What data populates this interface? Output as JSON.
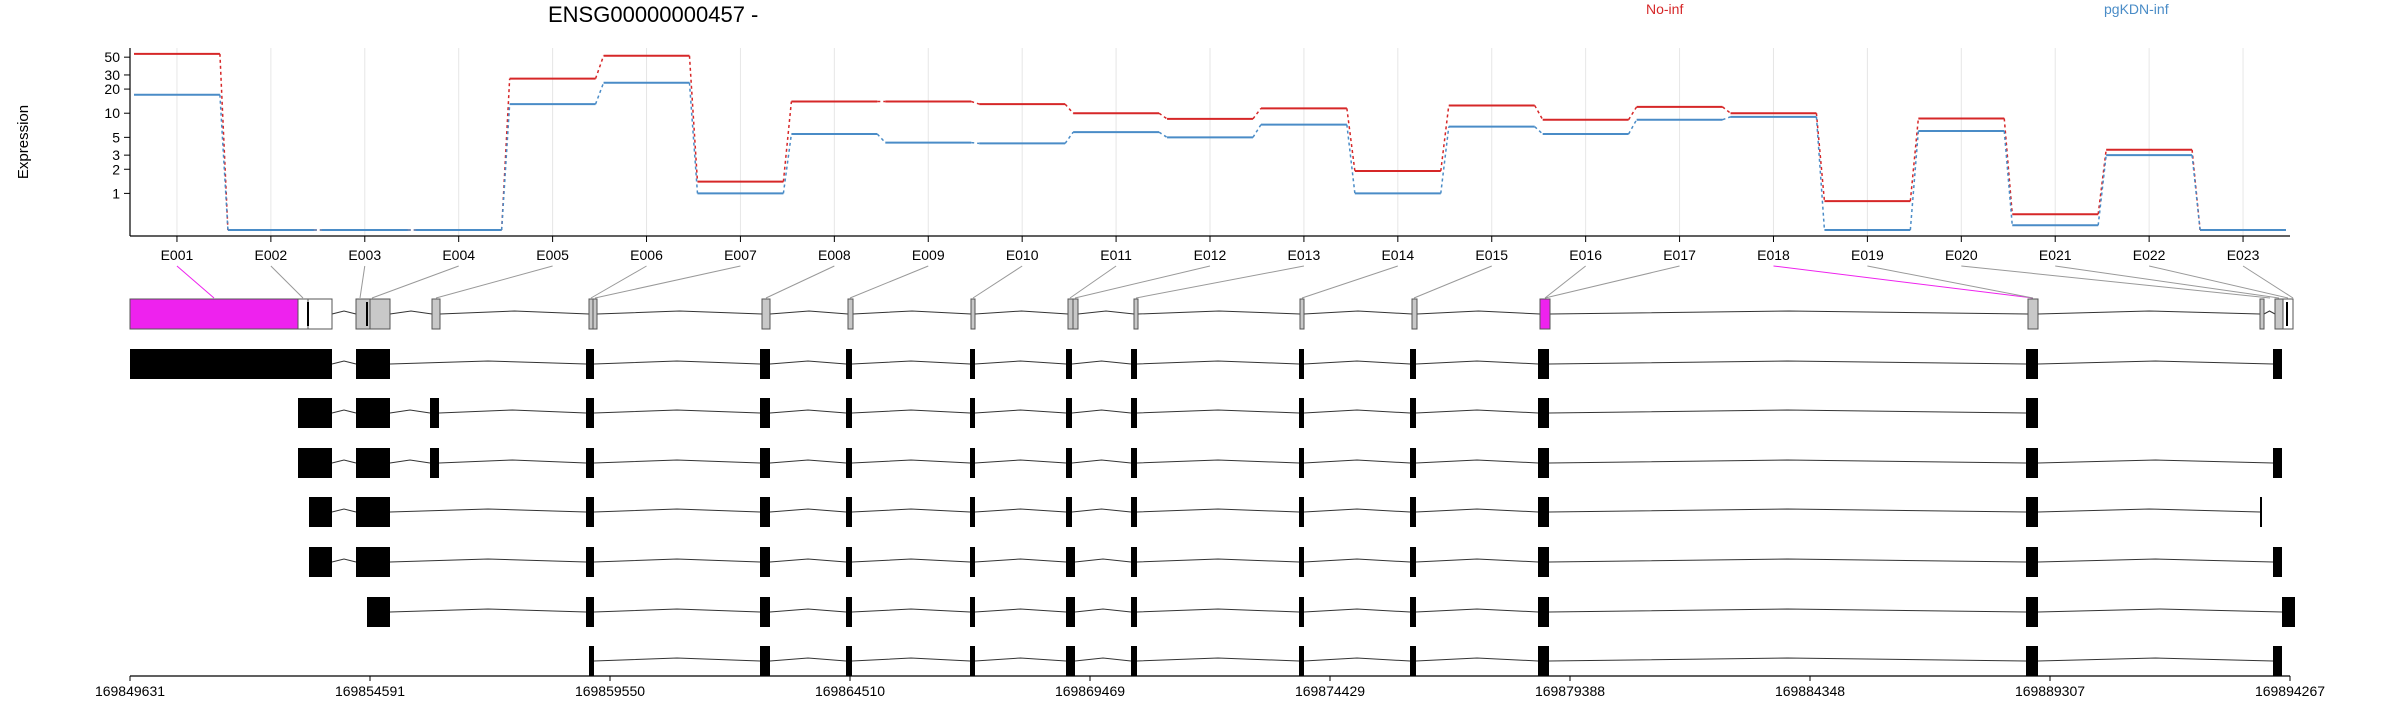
{
  "chart_data": {
    "type": "line",
    "title": "ENSG00000000457 -",
    "ylabel": "Expression",
    "y_scale": "log",
    "y_ticks": [
      "1",
      "2",
      "3",
      "5",
      "10",
      "20",
      "30",
      "50"
    ],
    "y_tick_values": [
      1,
      2,
      3,
      5,
      10,
      20,
      30,
      50
    ],
    "categories": [
      "E001",
      "E002",
      "E003",
      "E004",
      "E005",
      "E006",
      "E007",
      "E008",
      "E009",
      "E010",
      "E011",
      "E012",
      "E013",
      "E014",
      "E015",
      "E016",
      "E017",
      "E018",
      "E019",
      "E020",
      "E021",
      "E022",
      "E023"
    ],
    "series": [
      {
        "name": "No-inf",
        "color": "#d62728",
        "values": [
          55,
          0.35,
          0.35,
          0.35,
          27,
          52,
          1.4,
          14,
          14,
          13,
          10,
          8.5,
          11.5,
          1.9,
          12.5,
          8.3,
          12,
          10,
          0.8,
          8.6,
          0.55,
          3.5,
          0.35
        ]
      },
      {
        "name": "pgKDN-inf",
        "color": "#4a8cc7",
        "values": [
          17,
          0.35,
          0.35,
          0.35,
          13,
          24,
          1.0,
          5.5,
          4.3,
          4.2,
          5.8,
          5.0,
          7.2,
          1.0,
          6.8,
          5.5,
          8.3,
          9.0,
          0.35,
          6.0,
          0.4,
          3.0,
          0.35
        ]
      }
    ],
    "legend_placement": "top-right",
    "grid": "vertical",
    "genomic_axis": {
      "range": [
        169849631,
        169894267
      ],
      "tick_labels": [
        "169849631",
        "169854591",
        "169859550",
        "169864510",
        "169869469",
        "169874429",
        "169879388",
        "169884348",
        "169889307",
        "169894267"
      ]
    },
    "highlight_color": "#ee22ee",
    "exons_highlighted": [
      "E001",
      "E018"
    ]
  }
}
